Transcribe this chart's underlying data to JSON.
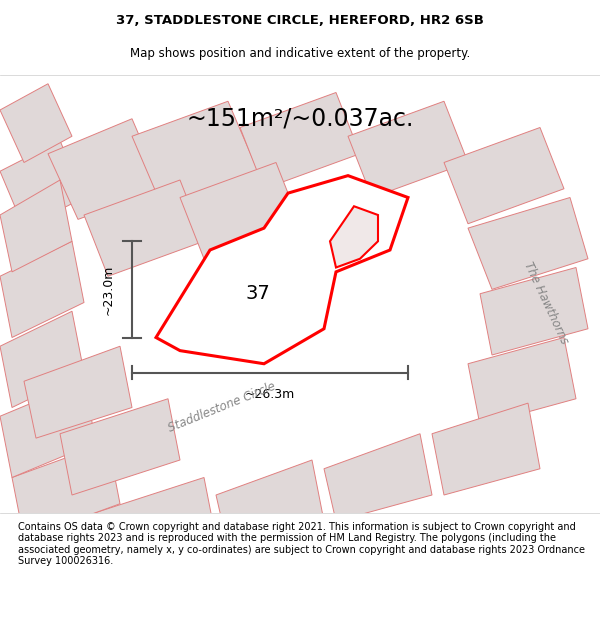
{
  "title_line1": "37, STADDLESTONE CIRCLE, HEREFORD, HR2 6SB",
  "title_line2": "Map shows position and indicative extent of the property.",
  "area_text": "~151m²/~0.037ac.",
  "dim_vertical": "~23.0m",
  "dim_horizontal": "~26.3m",
  "label_37": "37",
  "road_label1": "Staddlestone Circle",
  "road_label2": "The Hawthorns",
  "footer_text": "Contains OS data © Crown copyright and database right 2021. This information is subject to Crown copyright and database rights 2023 and is reproduced with the permission of HM Land Registry. The polygons (including the associated geometry, namely x, y co-ordinates) are subject to Crown copyright and database rights 2023 Ordnance Survey 100026316.",
  "map_bg": "#f2eeee",
  "building_fill": "#e0d8d8",
  "building_edge": "#e08080",
  "highlight_fill": "#ffffff",
  "highlight_edge": "#ff0000",
  "dim_line_color": "#555555",
  "title_fontsize": 9.5,
  "subtitle_fontsize": 8.5,
  "area_fontsize": 17,
  "dim_fontsize": 9,
  "label_fontsize": 14,
  "road_fontsize": 8.5,
  "footer_fontsize": 7
}
